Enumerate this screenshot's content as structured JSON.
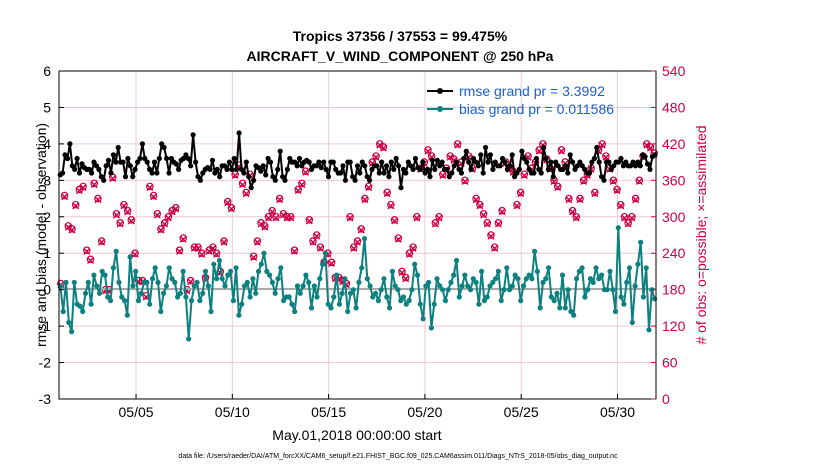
{
  "chart_data": {
    "type": "line",
    "title_line1": "Tropics 37356 / 37553 = 99.475%",
    "title_line2": "AIRCRAFT_V_WIND_COMPONENT @ 250 hPa",
    "xlabel": "May.01,2018 00:00:00 start",
    "ylabel_left": "rmse and bias (model - observation)",
    "ylabel_right": "# of obs: o=possible; ×=assimilated",
    "x_range_days": [
      1,
      32
    ],
    "ylim_left": [
      -3,
      6
    ],
    "ylim_right": [
      0,
      540
    ],
    "left_ticks": [
      "-3",
      "-2",
      "-1",
      "0",
      "1",
      "2",
      "3",
      "4",
      "5",
      "6"
    ],
    "right_ticks": [
      "0",
      "60",
      "120",
      "180",
      "240",
      "300",
      "360",
      "420",
      "480",
      "540"
    ],
    "x_ticks": [
      {
        "day": 5,
        "label": "05/05"
      },
      {
        "day": 10,
        "label": "05/10"
      },
      {
        "day": 15,
        "label": "05/15"
      },
      {
        "day": 20,
        "label": "05/20"
      },
      {
        "day": 25,
        "label": "05/25"
      },
      {
        "day": 30,
        "label": "05/30"
      }
    ],
    "series": [
      {
        "name": "rmse",
        "legend": "rmse grand pr = 3.3992",
        "color": "#000000",
        "values": [
          3.15,
          3.2,
          3.7,
          3.6,
          4.0,
          3.4,
          3.3,
          3.6,
          3.2,
          3.45,
          3.35,
          3.3,
          3.3,
          3.2,
          3.5,
          3.4,
          3.3,
          3.1,
          3.0,
          3.4,
          3.55,
          3.2,
          3.7,
          3.5,
          3.9,
          3.5,
          3.5,
          3.1,
          3.6,
          3.4,
          3.1,
          3.3,
          3.5,
          3.6,
          4.0,
          3.6,
          3.5,
          3.3,
          3.2,
          3.5,
          3.2,
          3.6,
          4.0,
          3.9,
          3.6,
          3.2,
          3.6,
          3.5,
          3.45,
          3.3,
          3.55,
          3.6,
          3.7,
          3.6,
          3.4,
          4.25,
          3.5,
          3.1,
          3.0,
          3.2,
          3.3,
          3.35,
          3.3,
          3.55,
          3.2,
          3.3,
          3.1,
          3.4,
          3.4,
          3.3,
          3.5,
          3.3,
          3.6,
          3.3,
          4.3,
          3.3,
          3.2,
          3.5,
          3.1,
          2.8,
          3.0,
          3.4,
          3.35,
          3.25,
          3.4,
          3.15,
          3.6,
          3.5,
          3.1,
          3.0,
          3.3,
          3.8,
          3.1,
          3.0,
          3.3,
          3.6,
          3.5,
          3.5,
          3.4,
          3.6,
          3.4,
          3.5,
          3.55,
          3.5,
          3.3,
          3.4,
          3.4,
          3.5,
          3.35,
          3.5,
          3.3,
          3.1,
          3.5,
          3.5,
          3.3,
          3.2,
          3.2,
          3.4,
          3.0,
          3.5,
          3.5,
          3.1,
          3.0,
          3.4,
          3.2,
          3.5,
          3.4,
          3.1,
          3.0,
          3.3,
          3.4,
          3.4,
          3.2,
          3.5,
          3.2,
          3.4,
          3.1,
          3.5,
          3.3,
          3.6,
          3.4,
          2.8,
          3.3,
          3.2,
          3.5,
          3.4,
          3.3,
          3.6,
          3.35,
          3.3,
          3.5,
          3.2,
          3.3,
          3.1,
          3.55,
          3.3,
          3.55,
          3.4,
          3.5,
          3.3,
          3.3,
          3.1,
          3.2,
          3.4,
          3.5,
          3.3,
          3.2,
          3.6,
          3.8,
          3.5,
          3.3,
          3.6,
          3.5,
          3.4,
          3.7,
          3.2,
          3.9,
          3.5,
          3.7,
          3.3,
          3.5,
          3.4,
          3.4,
          3.6,
          3.5,
          3.3,
          3.4,
          3.7,
          3.1,
          3.2,
          3.3,
          3.8,
          3.6,
          3.5,
          3.3,
          3.2,
          3.2,
          3.6,
          3.3,
          3.2,
          3.9,
          3.6,
          3.3,
          3.5,
          3.1,
          3.5,
          3.4,
          3.3,
          3.3,
          3.4,
          3.2,
          3.7,
          3.5,
          3.3,
          3.4,
          3.5,
          3.4,
          3.3,
          3.2,
          3.2,
          3.5,
          3.6,
          3.9,
          3.5,
          3.1,
          3.0,
          3.5,
          3.5,
          3.3,
          3.4,
          3.5,
          3.5,
          3.6,
          3.4,
          3.5,
          3.4,
          3.4,
          3.5,
          3.4,
          3.5,
          3.4,
          3.7,
          3.65,
          3.45,
          3.3,
          3.65,
          3.7
        ]
      },
      {
        "name": "bias",
        "legend": "bias grand pr = 0.011586",
        "color": "#0d8080",
        "values": [
          0.1,
          -0.6,
          0.2,
          -0.9,
          -1.15,
          0.2,
          -0.4,
          -0.45,
          -0.6,
          -0.1,
          0.2,
          -0.4,
          0.4,
          0.1,
          -0.1,
          0.5,
          0.4,
          -0.2,
          -0.3,
          0.6,
          1.05,
          0.2,
          -0.2,
          -0.3,
          -0.7,
          0.9,
          0.1,
          0.5,
          -0.3,
          -0.1,
          0.2,
          0.2,
          -0.4,
          0.3,
          0.6,
          0.2,
          -0.6,
          -0.1,
          0.1,
          0.6,
          0.3,
          0.2,
          -0.2,
          -0.1,
          0.5,
          -0.2,
          -1.35,
          -0.3,
          0.1,
          0.2,
          -0.3,
          -0.1,
          0.5,
          0.1,
          -0.6,
          0.7,
          0.3,
          0.8,
          0.3,
          0.1,
          0.4,
          0.5,
          -0.3,
          0.6,
          -0.7,
          -0.4,
          0.1,
          0.2,
          -0.2,
          0.3,
          -0.1,
          0.5,
          0.7,
          1.0,
          0.5,
          0.4,
          0.2,
          -0.1,
          0.3,
          0.6,
          -0.3,
          -0.2,
          -0.2,
          -0.4,
          -0.6,
          0.1,
          -0.1,
          0.1,
          0.4,
          0.2,
          -0.5,
          0.1,
          -0.2,
          0.3,
          0.7,
          1.0,
          -0.4,
          -0.5,
          -0.2,
          0.4,
          -0.4,
          -0.1,
          0.3,
          -0.6,
          -0.1,
          0.0,
          -0.5,
          0.2,
          0.6,
          1.4,
          0.3,
          0.1,
          -0.2,
          -0.1,
          -0.3,
          0.0,
          0.3,
          -0.2,
          -0.5,
          0.5,
          0.1,
          0.0,
          -0.3,
          -0.2,
          -0.4,
          -0.3,
          0.0,
          0.7,
          0.4,
          -0.4,
          -0.8,
          0.1,
          0.2,
          -1.05,
          -0.4,
          0.3,
          0.1,
          0.0,
          -0.3,
          0.0,
          0.2,
          0.4,
          0.8,
          -0.2,
          0.1,
          0.4,
          0.1,
          0.0,
          0.3,
          0.2,
          -0.4,
          0.5,
          -0.3,
          -0.2,
          0.1,
          0.2,
          0.3,
          0.5,
          -0.3,
          0.0,
          0.6,
          0.0,
          0.1,
          0.4,
          0.3,
          -0.3,
          0.1,
          0.3,
          0.4,
          0.3,
          1.05,
          0.5,
          -0.5,
          0.2,
          0.3,
          0.6,
          -0.2,
          -0.3,
          -0.1,
          -0.5,
          0.4,
          -0.5,
          0.0,
          -0.6,
          -0.7,
          0.3,
          0.5,
          0.6,
          -0.2,
          0.0,
          0.3,
          0.2,
          0.6,
          0.3,
          0.4,
          0.0,
          0.0,
          0.5,
          0.0,
          -0.6,
          1.7,
          -0.2,
          -0.4,
          0.2,
          0.6,
          -0.9,
          0.1,
          0.7,
          1.3,
          -0.2,
          0.6,
          -1.1,
          0.0,
          -0.25
        ]
      },
      {
        "name": "possible",
        "marker": "o",
        "color": "#cc0044",
        "values": [
          190,
          335,
          285,
          280,
          320,
          345,
          350,
          245,
          230,
          355,
          330,
          260,
          180,
          180,
          365,
          305,
          290,
          320,
          310,
          295,
          240,
          195,
          195,
          170,
          350,
          335,
          305,
          280,
          290,
          300,
          310,
          315,
          245,
          265,
          180,
          195,
          250,
          250,
          240,
          200,
          245,
          250,
          240,
          210,
          260,
          325,
          315,
          370,
          385,
          355,
          340,
          370,
          235,
          260,
          290,
          285,
          300,
          310,
          300,
          330,
          305,
          300,
          300,
          245,
          345,
          355,
          375,
          295,
          260,
          270,
          250,
          225,
          240,
          225,
          200,
          200,
          195,
          190,
          300,
          250,
          260,
          280,
          330,
          350,
          390,
          400,
          420,
          415,
          340,
          320,
          295,
          265,
          210,
          200,
          240,
          250,
          300,
          380,
          390,
          410,
          400,
          290,
          300,
          370,
          380,
          400,
          395,
          420,
          390,
          360,
          400,
          380,
          330,
          320,
          305,
          290,
          270,
          250,
          290,
          310,
          390,
          380,
          375,
          320,
          340,
          370,
          400,
          380,
          390,
          410,
          420,
          395,
          380,
          360,
          350,
          410,
          390,
          330,
          310,
          300,
          330,
          360,
          370,
          380,
          340,
          410,
          420,
          400,
          380,
          360,
          345,
          320,
          300,
          290,
          300,
          330,
          360,
          400,
          420,
          415,
          405
        ]
      },
      {
        "name": "assimilated",
        "marker": "x",
        "color": "#cc0044",
        "values": [
          188,
          333,
          283,
          278,
          318,
          343,
          348,
          243,
          228,
          353,
          328,
          258,
          178,
          178,
          363,
          303,
          288,
          318,
          308,
          293,
          238,
          193,
          193,
          168,
          348,
          333,
          303,
          278,
          288,
          298,
          308,
          313,
          243,
          263,
          178,
          193,
          248,
          248,
          238,
          198,
          243,
          248,
          238,
          208,
          258,
          323,
          313,
          368,
          383,
          353,
          338,
          368,
          233,
          258,
          288,
          283,
          298,
          308,
          298,
          328,
          303,
          298,
          298,
          243,
          343,
          353,
          373,
          293,
          258,
          268,
          248,
          223,
          238,
          223,
          198,
          198,
          193,
          188,
          298,
          248,
          258,
          278,
          328,
          348,
          388,
          398,
          418,
          413,
          338,
          318,
          293,
          263,
          208,
          198,
          238,
          248,
          298,
          378,
          388,
          408,
          398,
          288,
          298,
          368,
          378,
          398,
          393,
          418,
          388,
          358,
          398,
          378,
          328,
          318,
          303,
          288,
          268,
          248,
          288,
          308,
          388,
          378,
          373,
          318,
          338,
          368,
          398,
          378,
          388,
          408,
          418,
          393,
          378,
          358,
          348,
          408,
          388,
          328,
          308,
          298,
          328,
          358,
          368,
          378,
          338,
          408,
          418,
          398,
          378,
          358,
          343,
          318,
          298,
          288,
          298,
          328,
          358,
          398,
          418,
          413,
          403
        ]
      }
    ]
  },
  "footer": "data file: /Users/raeder/DAI/ATM_forcXX/CAM6_setup/f.e21.FHIST_BGC.f09_025.CAM6assim.011/Diags_NTrS_2018-05/obs_diag_output.nc"
}
